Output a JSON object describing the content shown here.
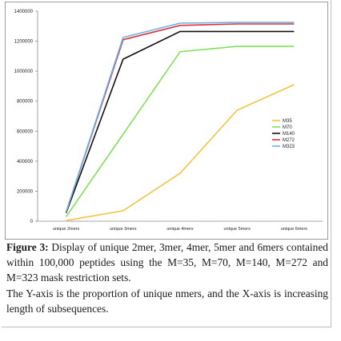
{
  "chart_data": {
    "type": "line",
    "categories": [
      "unique 2mers",
      "unique 3mers",
      "unique 4mers",
      "unique 5mers",
      "unique 6mers"
    ],
    "ylim": [
      0,
      1400000
    ],
    "yticks": [
      "0",
      "200000",
      "400000",
      "600000",
      "800000",
      "1000000",
      "1200000",
      "1400000"
    ],
    "grid": false,
    "legend_position": "right",
    "series": [
      {
        "name": "M35",
        "color": "#f5c342",
        "values": [
          4000,
          70000,
          320000,
          740000,
          910000
        ]
      },
      {
        "name": "M70",
        "color": "#7fe25a",
        "values": [
          30000,
          580000,
          1130000,
          1165000,
          1165000
        ]
      },
      {
        "name": "M140",
        "color": "#111111",
        "values": [
          55000,
          1080000,
          1265000,
          1265000,
          1265000
        ]
      },
      {
        "name": "M272",
        "color": "#e0303a",
        "values": [
          60000,
          1210000,
          1305000,
          1315000,
          1315000
        ]
      },
      {
        "name": "M323",
        "color": "#6ab2e6",
        "values": [
          62000,
          1225000,
          1320000,
          1325000,
          1325000
        ]
      }
    ]
  },
  "caption": {
    "label": "Figure 3:",
    "text": " Display of unique 2mer, 3mer, 4mer, 5mer and 6mers contained within 100,000 peptides using the M=35, M=70, M=140, M=272 and M=323 mask restriction sets.",
    "note": "The Y-axis is the proportion of unique nmers, and the X-axis is increasing length of subsequences."
  }
}
